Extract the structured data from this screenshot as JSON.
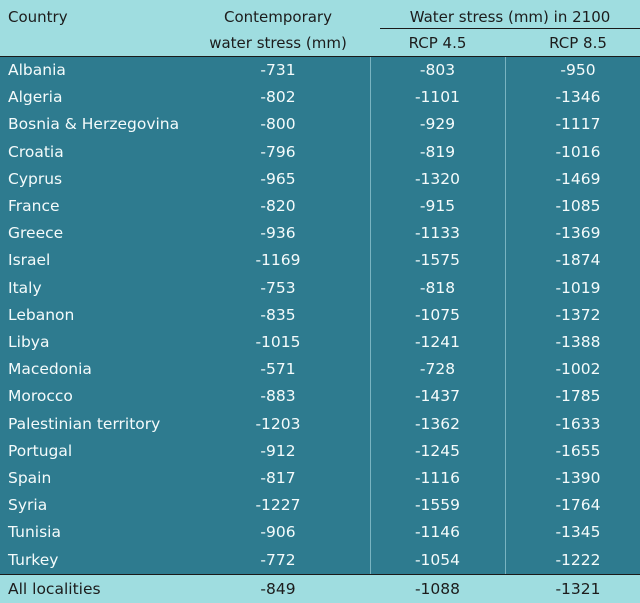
{
  "header": {
    "country": "Country",
    "contemporary_line1": "Contemporary",
    "contemporary_line2": "water stress (mm)",
    "group_title": "Water stress (mm) in 2100",
    "rcp45": "RCP 4.5",
    "rcp85": "RCP 8.5"
  },
  "rows": [
    {
      "country": "Albania",
      "contemporary": "-731",
      "rcp45": "-803",
      "rcp85": "-950"
    },
    {
      "country": "Algeria",
      "contemporary": "-802",
      "rcp45": "-1101",
      "rcp85": "-1346"
    },
    {
      "country": "Bosnia & Herzegovina",
      "contemporary": "-800",
      "rcp45": "-929",
      "rcp85": "-1117"
    },
    {
      "country": "Croatia",
      "contemporary": "-796",
      "rcp45": "-819",
      "rcp85": "-1016"
    },
    {
      "country": "Cyprus",
      "contemporary": "-965",
      "rcp45": "-1320",
      "rcp85": "-1469"
    },
    {
      "country": "France",
      "contemporary": "-820",
      "rcp45": "-915",
      "rcp85": "-1085"
    },
    {
      "country": "Greece",
      "contemporary": "-936",
      "rcp45": "-1133",
      "rcp85": "-1369"
    },
    {
      "country": "Israel",
      "contemporary": "-1169",
      "rcp45": "-1575",
      "rcp85": "-1874"
    },
    {
      "country": "Italy",
      "contemporary": "-753",
      "rcp45": "-818",
      "rcp85": "-1019"
    },
    {
      "country": "Lebanon",
      "contemporary": "-835",
      "rcp45": "-1075",
      "rcp85": "-1372"
    },
    {
      "country": "Libya",
      "contemporary": "-1015",
      "rcp45": "-1241",
      "rcp85": "-1388"
    },
    {
      "country": "Macedonia",
      "contemporary": "-571",
      "rcp45": "-728",
      "rcp85": "-1002"
    },
    {
      "country": "Morocco",
      "contemporary": "-883",
      "rcp45": "-1437",
      "rcp85": "-1785"
    },
    {
      "country": "Palestinian territory",
      "contemporary": "-1203",
      "rcp45": "-1362",
      "rcp85": "-1633"
    },
    {
      "country": "Portugal",
      "contemporary": "-912",
      "rcp45": "-1245",
      "rcp85": "-1655"
    },
    {
      "country": "Spain",
      "contemporary": "-817",
      "rcp45": "-1116",
      "rcp85": "-1390"
    },
    {
      "country": "Syria",
      "contemporary": "-1227",
      "rcp45": "-1559",
      "rcp85": "-1764"
    },
    {
      "country": "Tunisia",
      "contemporary": "-906",
      "rcp45": "-1146",
      "rcp85": "-1345"
    },
    {
      "country": "Turkey",
      "contemporary": "-772",
      "rcp45": "-1054",
      "rcp85": "-1222"
    }
  ],
  "footer": {
    "country": "All localities",
    "contemporary": "-849",
    "rcp45": "-1088",
    "rcp85": "-1321"
  },
  "colors": {
    "header_bg": "#9fdde0",
    "body_bg": "#2e7b8f",
    "body_text": "#f4fbfb"
  }
}
